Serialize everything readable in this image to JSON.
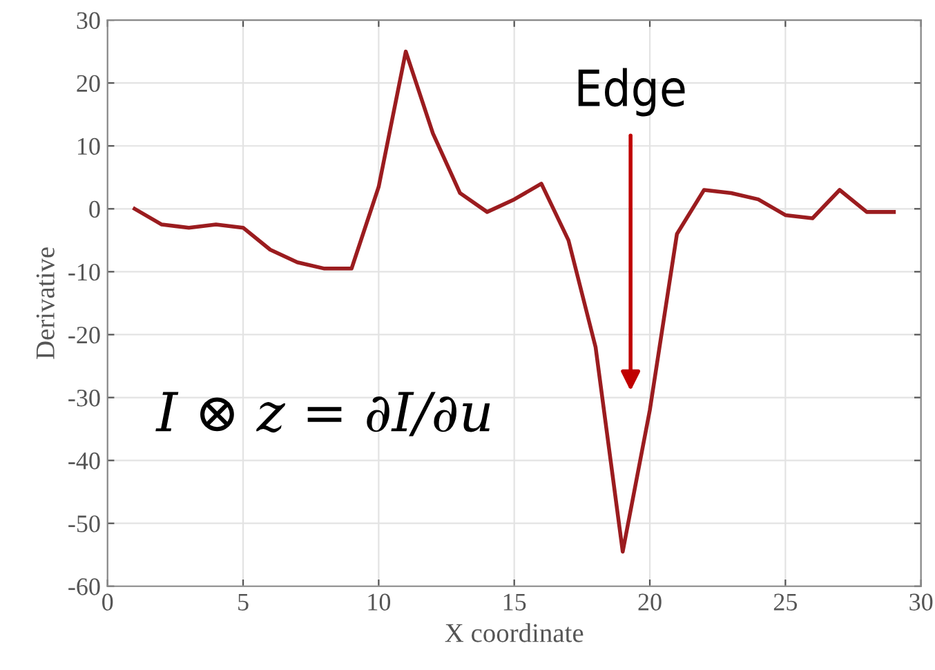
{
  "chart_data": {
    "type": "line",
    "xlabel": "X coordinate",
    "ylabel": "Derivative",
    "x": [
      1,
      2,
      3,
      4,
      5,
      6,
      7,
      8,
      9,
      10,
      11,
      12,
      13,
      14,
      15,
      16,
      17,
      18,
      19,
      20,
      21,
      22,
      23,
      24,
      25,
      26,
      27,
      28,
      29
    ],
    "series": [
      {
        "color": "#9b1c1f",
        "values": [
          0,
          -2.5,
          -3,
          -2.5,
          -3,
          -6.5,
          -8.5,
          -9.5,
          -9.5,
          3.5,
          25,
          12,
          2.5,
          -0.5,
          1.5,
          4,
          -5,
          -22,
          -54.5,
          -32,
          -4,
          3,
          2.5,
          1.5,
          -1,
          -1.5,
          3,
          -0.5,
          -0.5
        ]
      }
    ],
    "xlim": [
      0,
      30
    ],
    "ylim": [
      -60,
      30
    ],
    "xticks": [
      0,
      5,
      10,
      15,
      20,
      25,
      30
    ],
    "yticks": [
      -60,
      -50,
      -40,
      -30,
      -20,
      -10,
      0,
      10,
      20,
      30
    ],
    "grid": true,
    "marker": "none",
    "line_style": "solid",
    "annotations": [
      "Edge",
      "I ⊗ z = ∂I/∂u"
    ]
  }
}
